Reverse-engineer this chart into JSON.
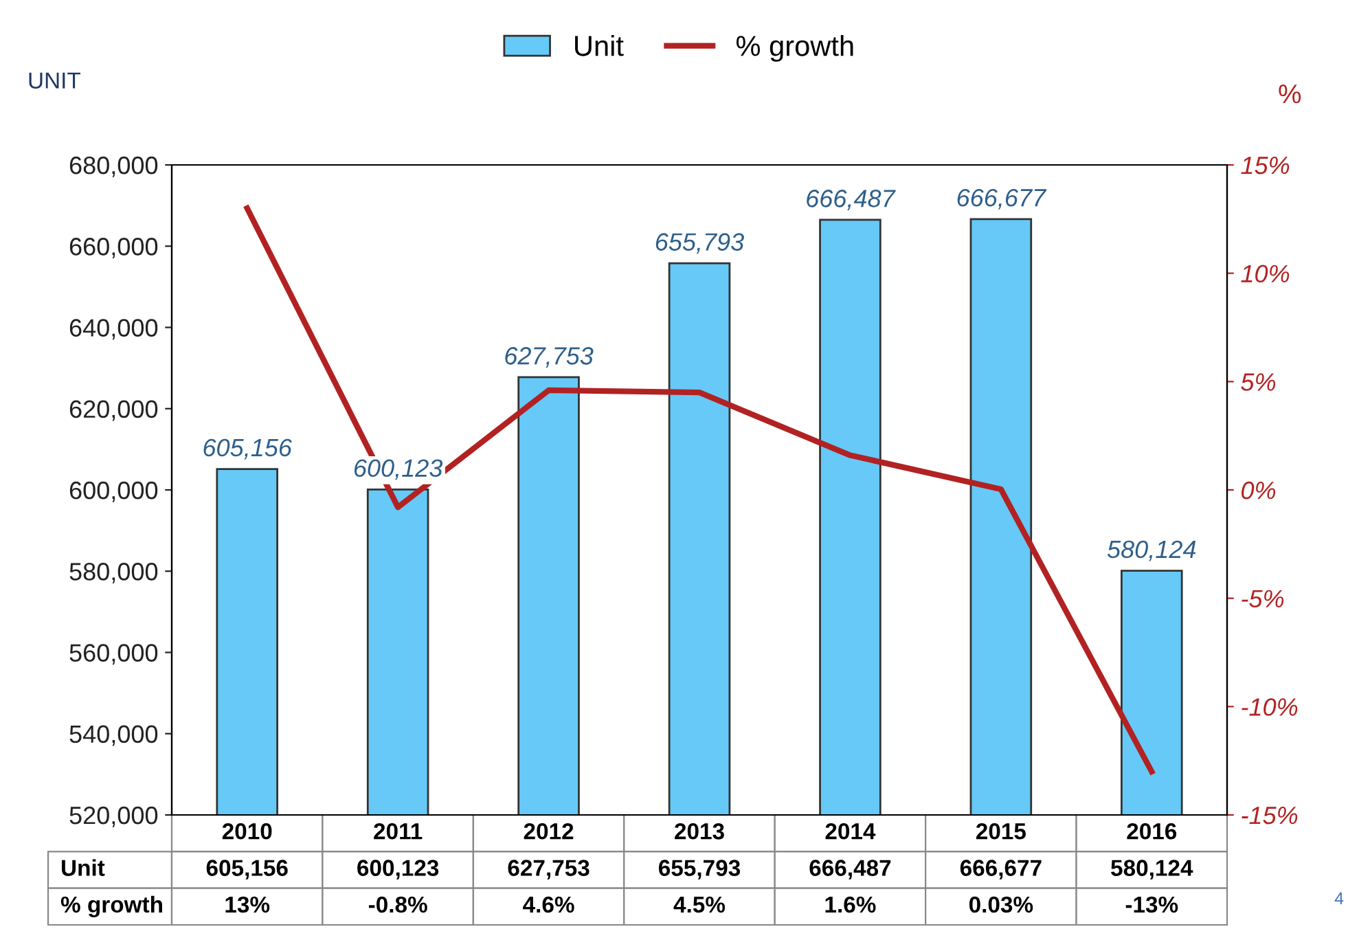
{
  "chart_data": {
    "type": "bar",
    "categories": [
      "2010",
      "2011",
      "2012",
      "2013",
      "2014",
      "2015",
      "2016"
    ],
    "ylabel": "UNIT",
    "y2label": "%",
    "series": [
      {
        "name": "Unit",
        "color": "#66c9f7",
        "values": [
          605156,
          600123,
          627753,
          655793,
          666487,
          666677,
          580124
        ],
        "value_labels": [
          "605,156",
          "600,123",
          "627,753",
          "655,793",
          "666,487",
          "666,677",
          "580,124"
        ]
      },
      {
        "name": "% growth",
        "type": "line",
        "axis": "y2",
        "color": "#b22222",
        "values": [
          13,
          -0.8,
          4.6,
          4.5,
          1.6,
          0.03,
          -13
        ],
        "value_labels": [
          "13%",
          "-0.8%",
          "4.6%",
          "4.5%",
          "1.6%",
          "0.03%",
          "-13%"
        ]
      }
    ],
    "ylim": [
      520000,
      680000
    ],
    "yticks": [
      {
        "value": 520000,
        "label": "520,000"
      },
      {
        "value": 540000,
        "label": "540,000"
      },
      {
        "value": 560000,
        "label": "560,000"
      },
      {
        "value": 580000,
        "label": "580,000"
      },
      {
        "value": 600000,
        "label": "600,000"
      },
      {
        "value": 620000,
        "label": "620,000"
      },
      {
        "value": 640000,
        "label": "640,000"
      },
      {
        "value": 660000,
        "label": "660,000"
      },
      {
        "value": 680000,
        "label": "680,000"
      }
    ],
    "y2lim": [
      -15,
      15
    ],
    "y2ticks": [
      {
        "value": -15,
        "label": "-15%"
      },
      {
        "value": -10,
        "label": "-10%"
      },
      {
        "value": -5,
        "label": "-5%"
      },
      {
        "value": 0,
        "label": "0%"
      },
      {
        "value": 5,
        "label": "5%"
      },
      {
        "value": 10,
        "label": "10%"
      },
      {
        "value": 15,
        "label": "15%"
      }
    ],
    "legend": "top",
    "grid": false,
    "marker": "none",
    "line_style": "solid",
    "annotations": [
      "4"
    ]
  }
}
